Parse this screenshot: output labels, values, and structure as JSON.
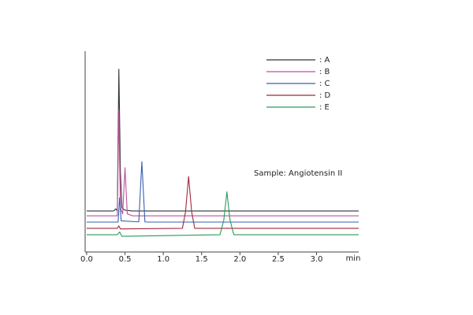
{
  "chart_data": {
    "type": "line",
    "annotation": "Sample: Angiotensin II",
    "x_label": "min",
    "xlim": [
      -0.02,
      3.55
    ],
    "xticks": [
      {
        "value": 0,
        "label": "0.0"
      },
      {
        "value": 0.5,
        "label": "0.5"
      },
      {
        "value": 1,
        "label": "1.0"
      },
      {
        "value": 1.5,
        "label": "1.5"
      },
      {
        "value": 2,
        "label": "2.0"
      },
      {
        "value": 2.5,
        "label": "2.5"
      },
      {
        "value": 3,
        "label": "3.0"
      }
    ],
    "ylim": [
      0,
      100
    ],
    "grid": false,
    "legend": "top-right",
    "series": [
      {
        "name": ": A",
        "color": "#333333",
        "x": [
          0,
          0.35,
          0.38,
          0.4,
          0.42,
          0.44,
          0.46,
          0.5,
          0.6,
          3.55
        ],
        "values": [
          20.4,
          20.4,
          21.5,
          20.4,
          91,
          40,
          22,
          20.8,
          20.4,
          20.4
        ]
      },
      {
        "name": ": B",
        "color": "#c0509a",
        "x": [
          0,
          0.4,
          0.42,
          0.44,
          0.47,
          0.5,
          0.53,
          0.6,
          3.55
        ],
        "values": [
          18,
          18,
          70.6,
          22,
          19,
          42,
          19,
          18,
          18
        ]
      },
      {
        "name": ": C",
        "color": "#3a5fb0",
        "x": [
          0,
          0.41,
          0.43,
          0.45,
          0.68,
          0.72,
          0.76,
          0.8,
          3.55
        ],
        "values": [
          14.9,
          14.9,
          27,
          15.5,
          15,
          45,
          15,
          14.9,
          14.9
        ]
      },
      {
        "name": ": D",
        "color": "#a0283c",
        "x": [
          0,
          0.4,
          0.42,
          0.44,
          1.25,
          1.29,
          1.33,
          1.37,
          1.41,
          3.55
        ],
        "values": [
          11.8,
          11.8,
          13,
          11.5,
          11.8,
          20,
          37.6,
          20,
          11.8,
          11.8
        ]
      },
      {
        "name": ": E",
        "color": "#2a9a5a",
        "x": [
          0,
          0.4,
          0.43,
          0.46,
          1.74,
          1.79,
          1.83,
          1.87,
          1.92,
          3.55
        ],
        "values": [
          8.6,
          8.6,
          10,
          7.8,
          8.6,
          16,
          30,
          16,
          8.6,
          8.6
        ]
      }
    ]
  }
}
